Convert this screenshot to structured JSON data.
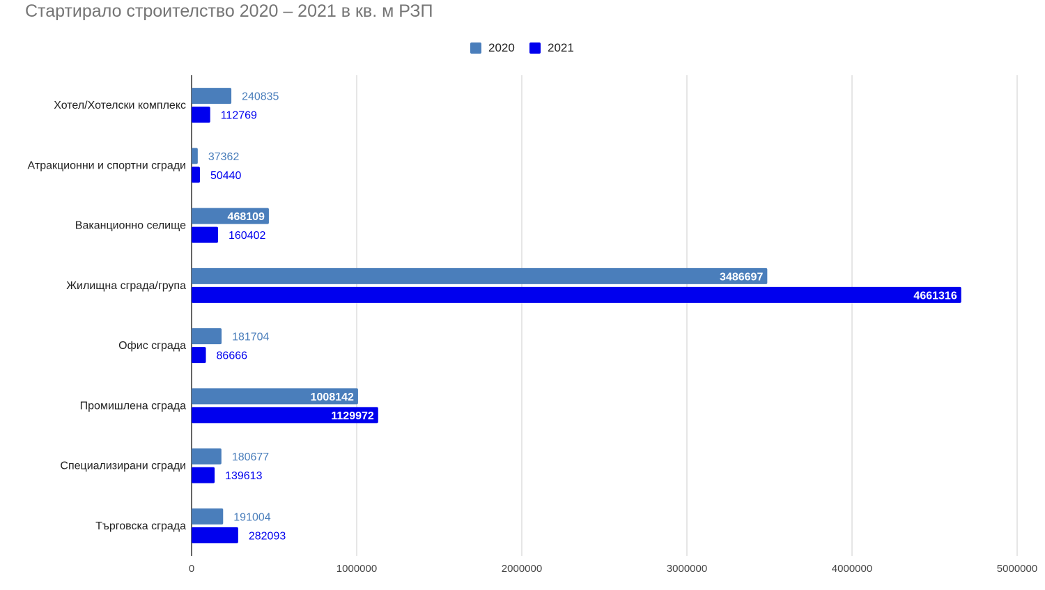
{
  "chart_data": {
    "type": "bar",
    "orientation": "horizontal",
    "title": "Стартирало строителство 2020 – 2021 в кв. м РЗП",
    "categories": [
      "Хотел/Хотелски комплекс",
      "Атракционни и спортни сгради",
      "Ваканционно селище",
      "Жилищна сграда/група",
      "Офис сграда",
      "Промишлена сграда",
      "Специализирани сгради",
      "Търговска сграда"
    ],
    "series": [
      {
        "name": "2020",
        "color": "#4a7ebb",
        "values": [
          240835,
          37362,
          468109,
          3486697,
          181704,
          1008142,
          180677,
          191004
        ]
      },
      {
        "name": "2021",
        "color": "#0000ee",
        "values": [
          112769,
          50440,
          160402,
          4661316,
          86666,
          1129972,
          139613,
          282093
        ]
      }
    ],
    "xlim": [
      0,
      5000000
    ],
    "xticks": [
      "0",
      "1000000",
      "2000000",
      "3000000",
      "4000000",
      "5000000"
    ],
    "grid": true,
    "legend_position": "top"
  }
}
